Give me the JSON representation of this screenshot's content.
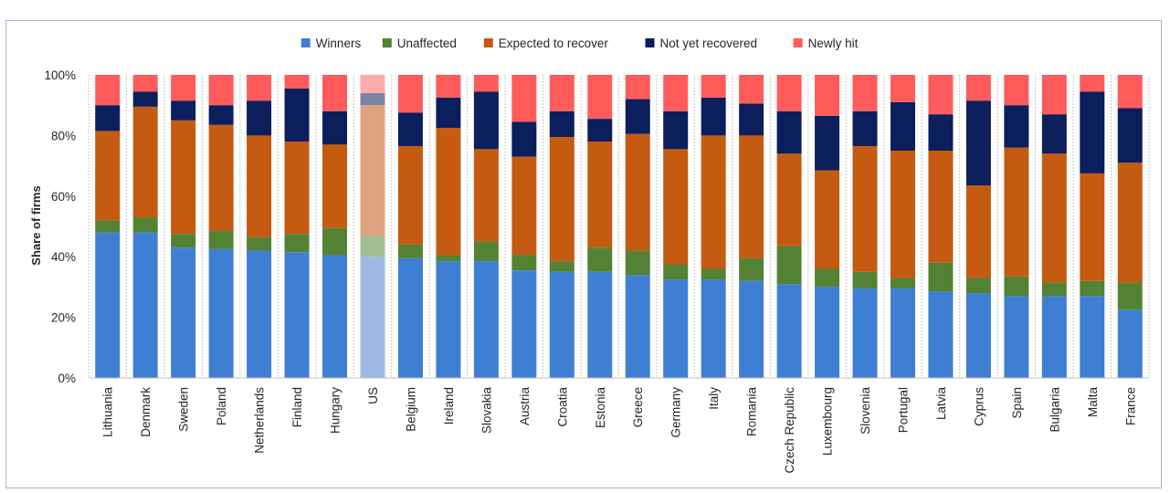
{
  "chart_data": {
    "type": "bar",
    "stacked": true,
    "ylabel": "Share of firms",
    "ylim": [
      0,
      100
    ],
    "yticks": [
      "0%",
      "20%",
      "40%",
      "60%",
      "80%",
      "100%"
    ],
    "legend_position": "top",
    "categories": [
      "Lithuania",
      "Denmark",
      "Sweden",
      "Poland",
      "Netherlands",
      "Finland",
      "Hungary",
      "US",
      "Belgium",
      "Ireland",
      "Slovakia",
      "Austria",
      "Croatia",
      "Estonia",
      "Greece",
      "Germany",
      "Italy",
      "Romania",
      "Czech Republic",
      "Luxembourg",
      "Slovenia",
      "Portugal",
      "Latvia",
      "Cyprus",
      "Spain",
      "Bulgaria",
      "Malta",
      "France"
    ],
    "highlighted_category": "US",
    "series": [
      {
        "name": "Winners",
        "color": "#3f7fd3",
        "highlight_color": "#9db9e3",
        "values": [
          48,
          48,
          43,
          42.5,
          42,
          41.5,
          40.5,
          40,
          39.5,
          38.5,
          38.5,
          35.5,
          35,
          35,
          34,
          32.5,
          32.5,
          32,
          31,
          30,
          29.5,
          29.5,
          28.5,
          28,
          27,
          27,
          27,
          22.5
        ]
      },
      {
        "name": "Unaffected",
        "color": "#548235",
        "highlight_color": "#a3bd93",
        "values": [
          4,
          5,
          4.5,
          6,
          4.5,
          6,
          9,
          7,
          4.5,
          2,
          6.5,
          5,
          3.5,
          8,
          8,
          5,
          3.5,
          7.5,
          12.5,
          6,
          5.5,
          3.5,
          9.5,
          5,
          6.5,
          4.5,
          5,
          9
        ]
      },
      {
        "name": "Expected to recover",
        "color": "#c55a11",
        "highlight_color": "#dfa380",
        "values": [
          29.5,
          36.5,
          37.5,
          35,
          33.5,
          30.5,
          27.5,
          43,
          32.5,
          42,
          30.5,
          32.5,
          41,
          35,
          38.5,
          38,
          44,
          40.5,
          30.5,
          32.5,
          41.5,
          42,
          37,
          30.5,
          42.5,
          42.5,
          35.5,
          39.5
        ]
      },
      {
        "name": "Not yet recovered",
        "color": "#0b1f5c",
        "highlight_color": "#7886a6",
        "values": [
          8.5,
          5,
          6.5,
          6.5,
          11.5,
          17.5,
          11,
          4,
          11,
          10,
          19,
          11.5,
          8.5,
          7.5,
          11.5,
          12.5,
          12.5,
          10.5,
          14,
          18,
          11.5,
          16,
          12,
          28,
          14,
          13,
          27,
          18
        ]
      },
      {
        "name": "Newly hit",
        "color": "#ff5b5b",
        "highlight_color": "#fbabab",
        "values": [
          10,
          5.5,
          8.5,
          10,
          8.5,
          4.5,
          12,
          6,
          12.5,
          7.5,
          5.5,
          15.5,
          12,
          14.5,
          8,
          12,
          7.5,
          9.5,
          12,
          13.5,
          12,
          9,
          13,
          8.5,
          10,
          13,
          5.5,
          11
        ]
      }
    ]
  }
}
